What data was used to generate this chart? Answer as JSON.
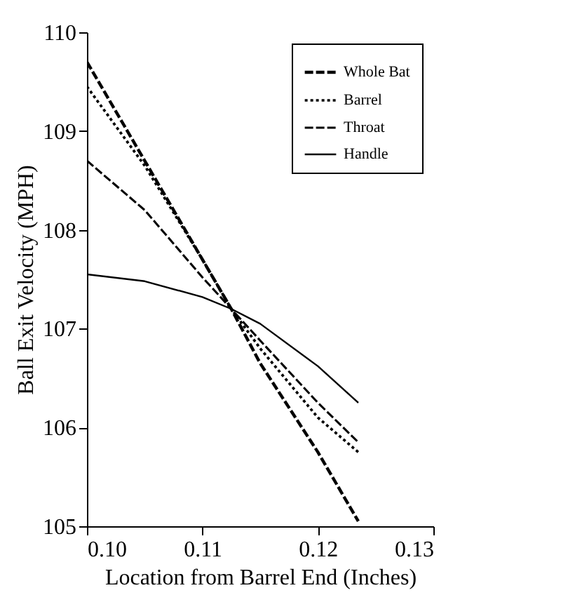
{
  "chart_data": {
    "type": "line",
    "xlabel": "Location from Barrel End (Inches)",
    "ylabel": "Ball Exit Velocity (MPH)",
    "x": [
      0.1,
      0.105,
      0.11,
      0.1125,
      0.115,
      0.12,
      0.1235
    ],
    "series": [
      {
        "name": "Whole Bat",
        "color": "#000000",
        "line_style": "dashed",
        "values": [
          109.7,
          108.7,
          107.7,
          107.2,
          106.65,
          105.75,
          105.05
        ]
      },
      {
        "name": "Barrel",
        "color": "#000000",
        "line_style": "dotted",
        "values": [
          109.45,
          108.65,
          107.7,
          107.2,
          106.8,
          106.1,
          105.75
        ]
      },
      {
        "name": "Throat",
        "color": "#000000",
        "line_style": "dashed",
        "values": [
          108.7,
          108.2,
          107.52,
          107.2,
          106.88,
          106.25,
          105.85
        ]
      },
      {
        "name": "Handle",
        "color": "#000000",
        "line_style": "solid",
        "values": [
          107.55,
          107.48,
          107.32,
          107.2,
          107.05,
          106.62,
          106.25
        ]
      }
    ],
    "xlim": [
      0.1,
      0.13
    ],
    "xticks": [
      {
        "value": 0.1,
        "label": "0.10"
      },
      {
        "value": 0.11,
        "label": "0.11"
      },
      {
        "value": 0.12,
        "label": "0.12"
      },
      {
        "value": 0.13,
        "label": "0.13"
      }
    ],
    "ylim": [
      105,
      110
    ],
    "yticks": [
      105,
      106,
      107,
      108,
      109,
      110
    ],
    "grid": false,
    "legend": "top right",
    "marker": "none"
  }
}
